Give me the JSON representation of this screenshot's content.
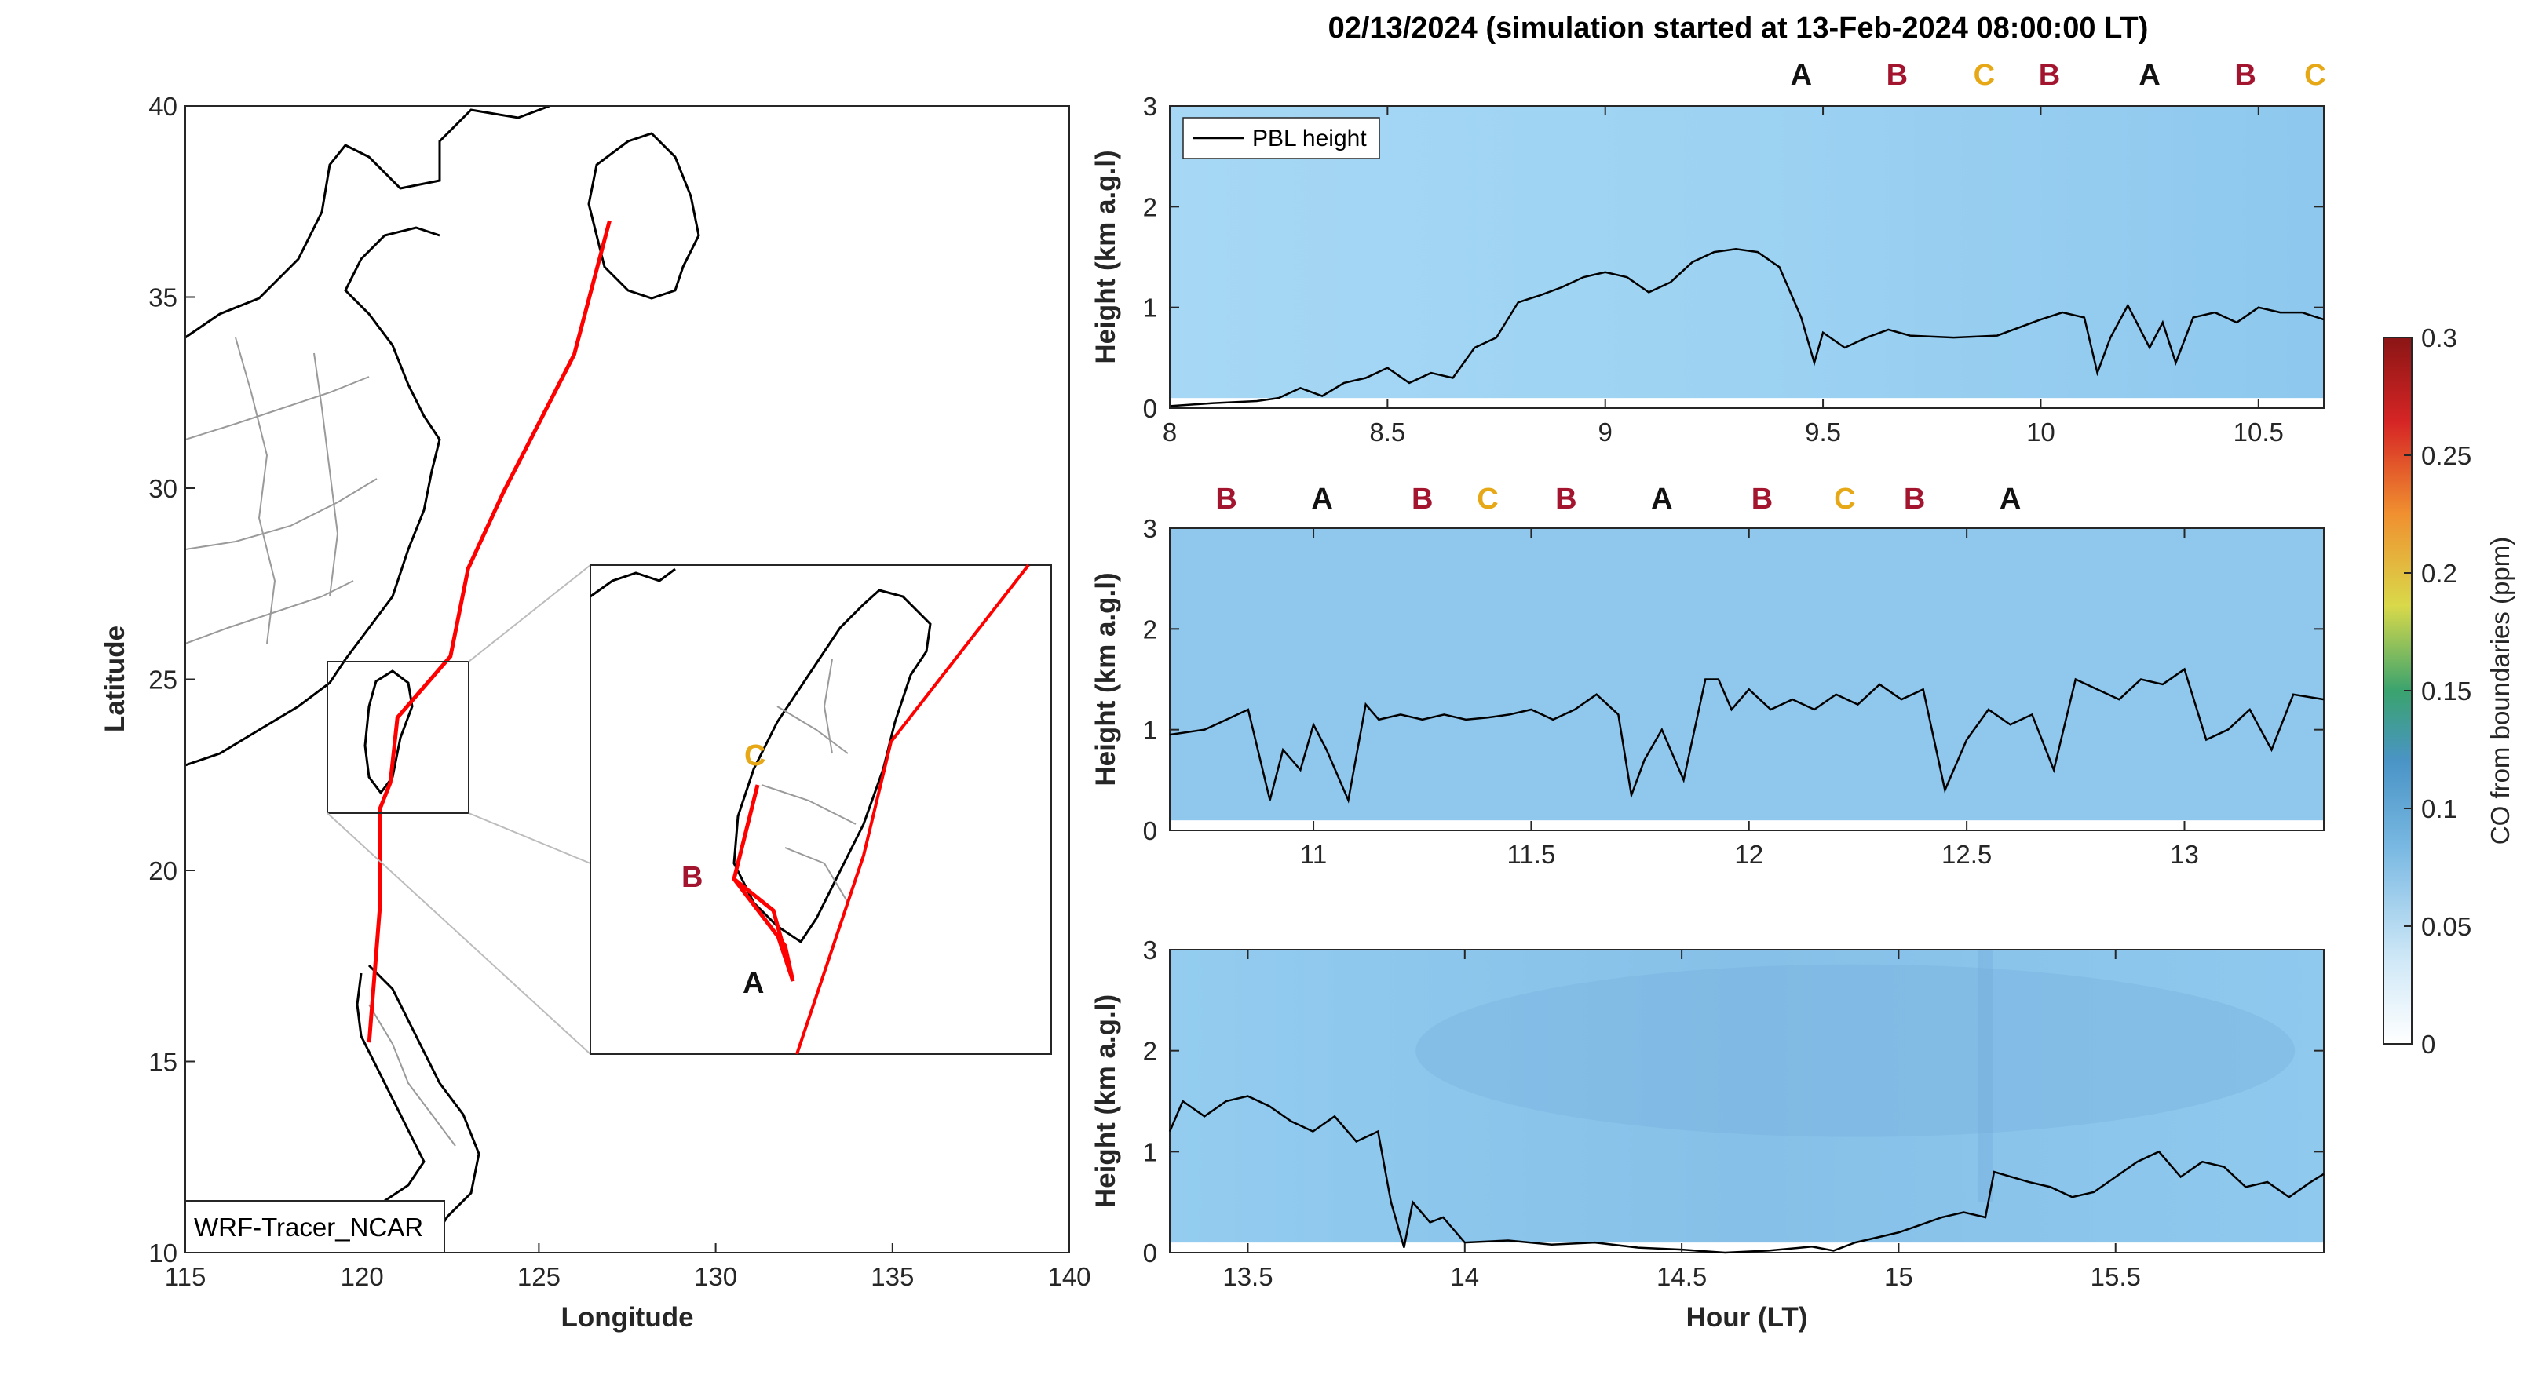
{
  "figure_title": "02/13/2024 (simulation started at 13-Feb-2024 08:00:00 LT)",
  "colors": {
    "A": "#111111",
    "B": "#a3152f",
    "C": "#e6a817",
    "track": "#ff0000",
    "pbl_fill": "#8ec8ee"
  },
  "chart_data": [
    {
      "type": "map",
      "name": "trajectory-map",
      "xlabel": "Longitude",
      "ylabel": "Latitude",
      "xlim": [
        115,
        140
      ],
      "ylim": [
        10,
        40
      ],
      "xticks": [
        115,
        120,
        125,
        130,
        135,
        140
      ],
      "yticks": [
        10,
        15,
        20,
        25,
        30,
        35,
        40
      ],
      "annotation": "WRF-Tracer_NCAR",
      "track": {
        "lon": [
          127.0,
          126.0,
          124.0,
          123.0,
          122.5,
          121.0,
          120.8,
          120.5,
          120.5,
          120.2
        ],
        "lat": [
          37.0,
          33.5,
          29.9,
          27.9,
          25.6,
          24.0,
          22.3,
          21.6,
          19.0,
          15.5
        ]
      },
      "inset_markers": [
        {
          "label": "C",
          "color_key": "C"
        },
        {
          "label": "B",
          "color_key": "B"
        },
        {
          "label": "A",
          "color_key": "A"
        }
      ]
    },
    {
      "type": "heatmap",
      "name": "panel-1",
      "ylabel": "Height (km a.g.l)",
      "xlim": [
        8,
        10.65
      ],
      "ylim": [
        0,
        3
      ],
      "xticks": [
        8,
        8.5,
        9,
        9.5,
        10,
        10.5
      ],
      "xticklabels": [
        "8",
        "8.5",
        "9",
        "9.5",
        "10",
        "10.5"
      ],
      "yticks": [
        0,
        1,
        2,
        3
      ],
      "legend": "PBL height",
      "markers": [
        {
          "label": "A",
          "x": 9.45,
          "color_key": "A"
        },
        {
          "label": "B",
          "x": 9.67,
          "color_key": "B"
        },
        {
          "label": "C",
          "x": 9.87,
          "color_key": "C"
        },
        {
          "label": "B",
          "x": 10.02,
          "color_key": "B"
        },
        {
          "label": "A",
          "x": 10.25,
          "color_key": "A"
        },
        {
          "label": "B",
          "x": 10.47,
          "color_key": "B"
        },
        {
          "label": "C",
          "x": 10.63,
          "color_key": "C"
        }
      ],
      "pbl_x": [
        8.0,
        8.1,
        8.2,
        8.25,
        8.3,
        8.35,
        8.4,
        8.45,
        8.5,
        8.55,
        8.6,
        8.65,
        8.7,
        8.75,
        8.8,
        8.85,
        8.9,
        8.95,
        9.0,
        9.05,
        9.1,
        9.15,
        9.2,
        9.25,
        9.3,
        9.35,
        9.4,
        9.45,
        9.48,
        9.5,
        9.55,
        9.6,
        9.65,
        9.7,
        9.8,
        9.9,
        10.0,
        10.05,
        10.1,
        10.13,
        10.16,
        10.2,
        10.25,
        10.28,
        10.31,
        10.35,
        10.4,
        10.45,
        10.5,
        10.55,
        10.6,
        10.65
      ],
      "pbl_y": [
        0.02,
        0.05,
        0.07,
        0.1,
        0.2,
        0.12,
        0.25,
        0.3,
        0.4,
        0.25,
        0.35,
        0.3,
        0.6,
        0.7,
        1.05,
        1.12,
        1.2,
        1.3,
        1.35,
        1.3,
        1.15,
        1.25,
        1.45,
        1.55,
        1.58,
        1.55,
        1.4,
        0.9,
        0.45,
        0.75,
        0.6,
        0.7,
        0.78,
        0.72,
        0.7,
        0.72,
        0.88,
        0.95,
        0.9,
        0.35,
        0.7,
        1.02,
        0.6,
        0.85,
        0.45,
        0.9,
        0.95,
        0.85,
        1.0,
        0.95,
        0.95,
        0.88
      ]
    },
    {
      "type": "heatmap",
      "name": "panel-2",
      "ylabel": "Height (km a.g.l)",
      "xlim": [
        10.67,
        13.32
      ],
      "ylim": [
        0,
        3
      ],
      "xticks": [
        11,
        11.5,
        12,
        12.5,
        13
      ],
      "xticklabels": [
        "11",
        "11.5",
        "12",
        "12.5",
        "13"
      ],
      "yticks": [
        0,
        1,
        2,
        3
      ],
      "markers": [
        {
          "label": "B",
          "x": 10.8,
          "color_key": "B"
        },
        {
          "label": "A",
          "x": 11.02,
          "color_key": "A"
        },
        {
          "label": "B",
          "x": 11.25,
          "color_key": "B"
        },
        {
          "label": "C",
          "x": 11.4,
          "color_key": "C"
        },
        {
          "label": "B",
          "x": 11.58,
          "color_key": "B"
        },
        {
          "label": "A",
          "x": 11.8,
          "color_key": "A"
        },
        {
          "label": "B",
          "x": 12.03,
          "color_key": "B"
        },
        {
          "label": "C",
          "x": 12.22,
          "color_key": "C"
        },
        {
          "label": "B",
          "x": 12.38,
          "color_key": "B"
        },
        {
          "label": "A",
          "x": 12.6,
          "color_key": "A"
        }
      ],
      "pbl_x": [
        10.67,
        10.75,
        10.8,
        10.85,
        10.9,
        10.93,
        10.97,
        11.0,
        11.03,
        11.08,
        11.12,
        11.15,
        11.2,
        11.25,
        11.3,
        11.35,
        11.4,
        11.45,
        11.5,
        11.55,
        11.6,
        11.65,
        11.7,
        11.73,
        11.76,
        11.8,
        11.85,
        11.9,
        11.93,
        11.96,
        12.0,
        12.05,
        12.1,
        12.15,
        12.2,
        12.25,
        12.3,
        12.35,
        12.4,
        12.45,
        12.5,
        12.55,
        12.6,
        12.65,
        12.7,
        12.75,
        12.8,
        12.85,
        12.9,
        12.95,
        13.0,
        13.05,
        13.1,
        13.15,
        13.2,
        13.25,
        13.32
      ],
      "pbl_y": [
        0.95,
        1.0,
        1.1,
        1.2,
        0.3,
        0.8,
        0.6,
        1.05,
        0.8,
        0.3,
        1.25,
        1.1,
        1.15,
        1.1,
        1.15,
        1.1,
        1.12,
        1.15,
        1.2,
        1.1,
        1.2,
        1.35,
        1.15,
        0.35,
        0.7,
        1.0,
        0.5,
        1.5,
        1.5,
        1.2,
        1.4,
        1.2,
        1.3,
        1.2,
        1.35,
        1.25,
        1.45,
        1.3,
        1.4,
        0.4,
        0.9,
        1.2,
        1.05,
        1.15,
        0.6,
        1.5,
        1.4,
        1.3,
        1.5,
        1.45,
        1.6,
        0.9,
        1.0,
        1.2,
        0.8,
        1.35,
        1.3
      ]
    },
    {
      "type": "heatmap",
      "name": "panel-3",
      "xlabel": "Hour (LT)",
      "ylabel": "Height (km a.g.l)",
      "xlim": [
        13.32,
        15.98
      ],
      "ylim": [
        0,
        3
      ],
      "xticks": [
        13.5,
        14,
        14.5,
        15,
        15.5
      ],
      "xticklabels": [
        "13.5",
        "14",
        "14.5",
        "15",
        "15.5"
      ],
      "yticks": [
        0,
        1,
        2,
        3
      ],
      "pbl_x": [
        13.32,
        13.35,
        13.4,
        13.45,
        13.5,
        13.55,
        13.6,
        13.65,
        13.7,
        13.75,
        13.8,
        13.83,
        13.86,
        13.88,
        13.92,
        13.95,
        14.0,
        14.1,
        14.2,
        14.3,
        14.4,
        14.5,
        14.6,
        14.7,
        14.8,
        14.85,
        14.9,
        15.0,
        15.1,
        15.15,
        15.2,
        15.22,
        15.3,
        15.35,
        15.4,
        15.45,
        15.5,
        15.55,
        15.6,
        15.65,
        15.7,
        15.75,
        15.8,
        15.85,
        15.9,
        15.95,
        15.98
      ],
      "pbl_y": [
        1.2,
        1.5,
        1.35,
        1.5,
        1.55,
        1.45,
        1.3,
        1.2,
        1.35,
        1.1,
        1.2,
        0.5,
        0.05,
        0.5,
        0.3,
        0.35,
        0.1,
        0.12,
        0.08,
        0.1,
        0.05,
        0.03,
        0.0,
        0.02,
        0.06,
        0.02,
        0.1,
        0.2,
        0.35,
        0.4,
        0.35,
        0.8,
        0.7,
        0.65,
        0.55,
        0.6,
        0.75,
        0.9,
        1.0,
        0.75,
        0.9,
        0.85,
        0.65,
        0.7,
        0.55,
        0.7,
        0.78
      ]
    },
    {
      "type": "colorbar",
      "name": "co-colorbar",
      "label": "CO from boundaries (ppm)",
      "range": [
        0,
        0.3
      ],
      "ticks": [
        0,
        0.05,
        0.1,
        0.15,
        0.2,
        0.25,
        0.3
      ],
      "ticklabels": [
        "0",
        "0.05",
        "0.1",
        "0.15",
        "0.2",
        "0.25",
        "0.3"
      ]
    }
  ]
}
